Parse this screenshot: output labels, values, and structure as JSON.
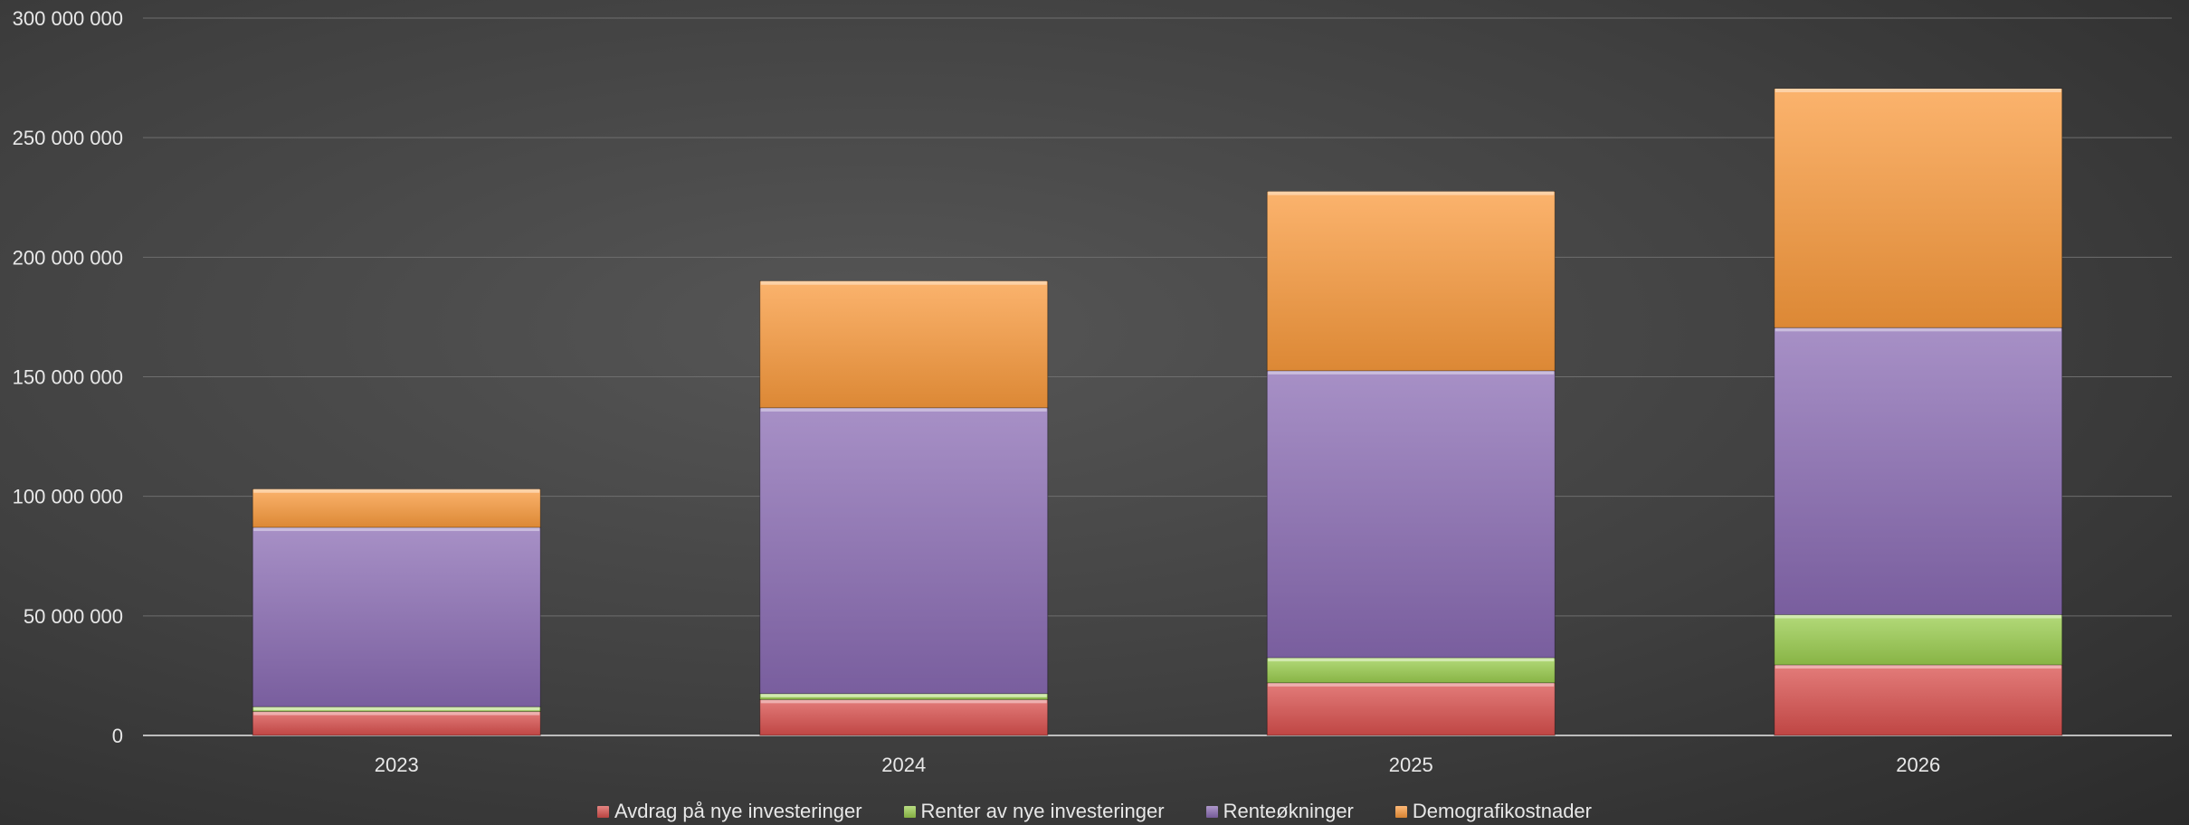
{
  "chart_data": {
    "type": "bar",
    "stacked": true,
    "categories": [
      "2023",
      "2024",
      "2025",
      "2026"
    ],
    "series": [
      {
        "name": "Avdrag på nye investeringer",
        "color": "#d9504d",
        "values": [
          10000000,
          15000000,
          22000000,
          29500000
        ]
      },
      {
        "name": "Renter av nye investeringer",
        "color": "#9acd4e",
        "values": [
          2000000,
          2500000,
          10500000,
          21000000
        ]
      },
      {
        "name": "Renteøkninger",
        "color": "#8a6bb3",
        "values": [
          75000000,
          119500000,
          120000000,
          120000000
        ]
      },
      {
        "name": "Demografikostnader",
        "color": "#fa9a3c",
        "values": [
          16000000,
          53000000,
          75000000,
          100000000
        ]
      }
    ],
    "yticks": [
      "0",
      "50 000 000",
      "100 000 000",
      "150 000 000",
      "200 000 000",
      "250 000 000",
      "300 000 000"
    ],
    "ylim": [
      0,
      300000000
    ],
    "grid": true,
    "legend_position": "bottom"
  }
}
